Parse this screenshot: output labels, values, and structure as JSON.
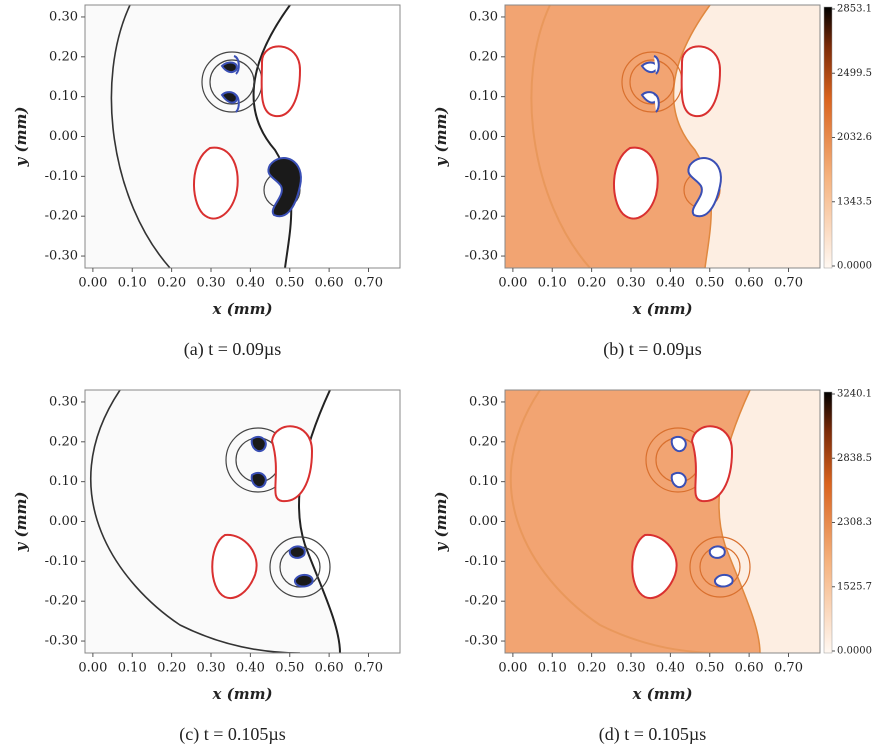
{
  "chart_data": [
    {
      "type": "heatmap",
      "caption": "(a) t = 0.09µs",
      "xlabel": "x (mm)",
      "ylabel": "y (mm)",
      "xlim": [
        -0.02,
        0.78
      ],
      "ylim": [
        -0.33,
        0.33
      ],
      "xticks": [
        {
          "value": 0,
          "label": "0.00"
        },
        {
          "value": 0.1,
          "label": "0.10"
        },
        {
          "value": 0.2,
          "label": "0.20"
        },
        {
          "value": 0.3,
          "label": "0.30"
        },
        {
          "value": 0.4,
          "label": "0.40"
        },
        {
          "value": 0.5,
          "label": "0.50"
        },
        {
          "value": 0.6,
          "label": "0.60"
        },
        {
          "value": 0.7,
          "label": "0.70"
        }
      ],
      "yticks": [
        {
          "value": 0.3,
          "label": "0.30"
        },
        {
          "value": 0.2,
          "label": "0.20"
        },
        {
          "value": 0.1,
          "label": "0.10"
        },
        {
          "value": 0,
          "label": "0.00"
        },
        {
          "value": -0.1,
          "label": "-0.10"
        },
        {
          "value": -0.2,
          "label": "-0.20"
        },
        {
          "value": -0.3,
          "label": "-0.30"
        }
      ]
    },
    {
      "type": "heatmap",
      "caption": "(b) t = 0.09µs",
      "xlabel": "x (mm)",
      "ylabel": "y (mm)",
      "xlim": [
        -0.02,
        0.78
      ],
      "ylim": [
        -0.33,
        0.33
      ],
      "xticks": [
        {
          "value": 0,
          "label": "0.00"
        },
        {
          "value": 0.1,
          "label": "0.10"
        },
        {
          "value": 0.2,
          "label": "0.20"
        },
        {
          "value": 0.3,
          "label": "0.30"
        },
        {
          "value": 0.4,
          "label": "0.40"
        },
        {
          "value": 0.5,
          "label": "0.50"
        },
        {
          "value": 0.6,
          "label": "0.60"
        },
        {
          "value": 0.7,
          "label": "0.70"
        }
      ],
      "yticks": [
        {
          "value": 0.3,
          "label": "0.30"
        },
        {
          "value": 0.2,
          "label": "0.20"
        },
        {
          "value": 0.1,
          "label": "0.10"
        },
        {
          "value": 0,
          "label": "0.00"
        },
        {
          "value": -0.1,
          "label": "-0.10"
        },
        {
          "value": -0.2,
          "label": "-0.20"
        },
        {
          "value": -0.3,
          "label": "-0.30"
        }
      ],
      "colorbar_ticks": [
        2853.1,
        2499.5,
        2032.6,
        1343.5,
        {
          "value": 0,
          "label": "0.0000"
        }
      ]
    },
    {
      "type": "heatmap",
      "caption": "(c) t = 0.105µs",
      "xlabel": "x (mm)",
      "ylabel": "y (mm)",
      "xlim": [
        -0.02,
        0.78
      ],
      "ylim": [
        -0.33,
        0.33
      ],
      "xticks": [
        {
          "value": 0,
          "label": "0.00"
        },
        {
          "value": 0.1,
          "label": "0.10"
        },
        {
          "value": 0.2,
          "label": "0.20"
        },
        {
          "value": 0.3,
          "label": "0.30"
        },
        {
          "value": 0.4,
          "label": "0.40"
        },
        {
          "value": 0.5,
          "label": "0.50"
        },
        {
          "value": 0.6,
          "label": "0.60"
        },
        {
          "value": 0.7,
          "label": "0.70"
        }
      ],
      "yticks": [
        {
          "value": 0.3,
          "label": "0.30"
        },
        {
          "value": 0.2,
          "label": "0.20"
        },
        {
          "value": 0.1,
          "label": "0.10"
        },
        {
          "value": 0,
          "label": "0.00"
        },
        {
          "value": -0.1,
          "label": "-0.10"
        },
        {
          "value": -0.2,
          "label": "-0.20"
        },
        {
          "value": -0.3,
          "label": "-0.30"
        }
      ]
    },
    {
      "type": "heatmap",
      "caption": "(d) t = 0.105µs",
      "xlabel": "x (mm)",
      "ylabel": "y (mm)",
      "xlim": [
        -0.02,
        0.78
      ],
      "ylim": [
        -0.33,
        0.33
      ],
      "xticks": [
        {
          "value": 0,
          "label": "0.00"
        },
        {
          "value": 0.1,
          "label": "0.10"
        },
        {
          "value": 0.2,
          "label": "0.20"
        },
        {
          "value": 0.3,
          "label": "0.30"
        },
        {
          "value": 0.4,
          "label": "0.40"
        },
        {
          "value": 0.5,
          "label": "0.50"
        },
        {
          "value": 0.6,
          "label": "0.60"
        },
        {
          "value": 0.7,
          "label": "0.70"
        }
      ],
      "yticks": [
        {
          "value": 0.3,
          "label": "0.30"
        },
        {
          "value": 0.2,
          "label": "0.20"
        },
        {
          "value": 0.1,
          "label": "0.10"
        },
        {
          "value": 0,
          "label": "0.00"
        },
        {
          "value": -0.1,
          "label": "-0.10"
        },
        {
          "value": -0.2,
          "label": "-0.20"
        },
        {
          "value": -0.3,
          "label": "-0.30"
        }
      ],
      "colorbar_ticks": [
        3240.1,
        2838.5,
        2308.3,
        1525.7,
        {
          "value": 0,
          "label": "0.0000"
        }
      ]
    }
  ]
}
